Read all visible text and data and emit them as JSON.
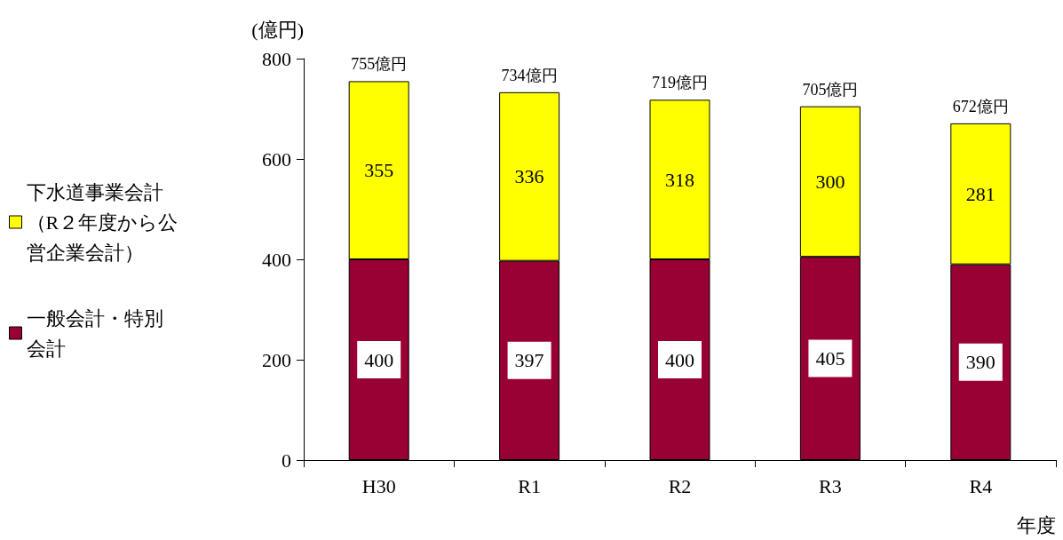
{
  "chart_data": {
    "type": "bar",
    "stacked": true,
    "categories": [
      "H30",
      "R1",
      "R2",
      "R3",
      "R4"
    ],
    "series": [
      {
        "name": "一般会計・特別会計",
        "color": "#990033",
        "values": [
          400,
          397,
          400,
          405,
          390
        ]
      },
      {
        "name": "下水道事業会計（R２年度から公営企業会計）",
        "color": "#ffff00",
        "values": [
          355,
          336,
          318,
          300,
          281
        ]
      }
    ],
    "totals": [
      "755億円",
      "734億円",
      "719億円",
      "705億円",
      "672億円"
    ],
    "ylabel": "(億円)",
    "xlabel": "年度",
    "ylim": [
      0,
      800
    ],
    "yticks": [
      0,
      200,
      400,
      600,
      800
    ],
    "data_labels": true,
    "grid": false,
    "legend": "left"
  }
}
